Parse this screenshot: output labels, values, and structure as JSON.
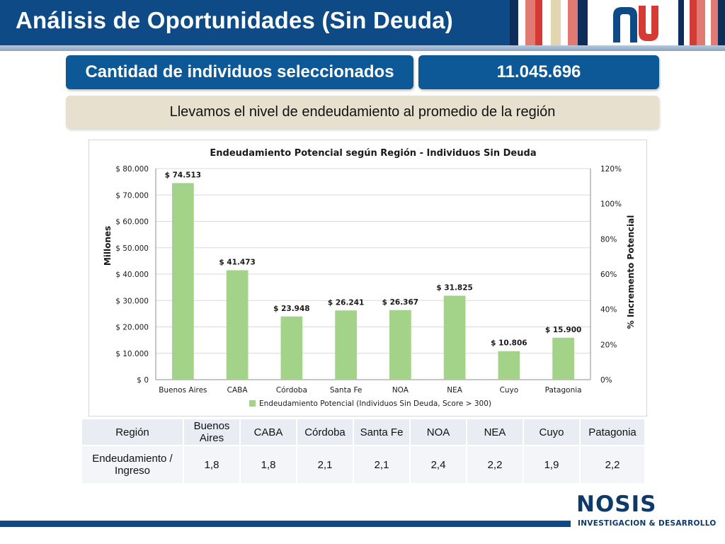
{
  "header": {
    "title": "Análisis de Oportunidades (Sin Deuda)",
    "colors": {
      "primary": "#0d4a86",
      "accent_red": "#d32f2f",
      "beige": "#e8e0cf"
    }
  },
  "banner": {
    "label": "Cantidad de individuos seleccionados",
    "value": "11.045.696"
  },
  "subtitle": "Llevamos el nivel de endeudamiento al promedio de la región",
  "chart_data": {
    "type": "bar",
    "title": "Endeudamiento Potencial según Región - Individuos Sin Deuda",
    "ylabel": "Millones",
    "y2label": "% Incremento Potencial",
    "categories": [
      "Buenos Aires",
      "CABA",
      "Córdoba",
      "Santa Fe",
      "NOA",
      "NEA",
      "Cuyo",
      "Patagonia"
    ],
    "series": [
      {
        "name": "Endeudamiento Potencial (Individuos Sin Deuda, Score > 300)",
        "values": [
          74513,
          41473,
          23948,
          26241,
          26367,
          31825,
          10806,
          15900
        ],
        "labels": [
          "$ 74.513",
          "$ 41.473",
          "$ 23.948",
          "$ 26.241",
          "$ 26.367",
          "$ 31.825",
          "$ 10.806",
          "$ 15.900"
        ],
        "color": "#a3d289"
      }
    ],
    "ylim": [
      0,
      80000
    ],
    "yticks": [
      0,
      10000,
      20000,
      30000,
      40000,
      50000,
      60000,
      70000,
      80000
    ],
    "ytick_labels": [
      "$ 0",
      "$ 10.000",
      "$ 20.000",
      "$ 30.000",
      "$ 40.000",
      "$ 50.000",
      "$ 60.000",
      "$ 70.000",
      "$ 80.000"
    ],
    "y2lim": [
      0,
      120
    ],
    "y2ticks": [
      0,
      20,
      40,
      60,
      80,
      100,
      120
    ],
    "y2tick_labels": [
      "0%",
      "20%",
      "40%",
      "60%",
      "80%",
      "100%",
      "120%"
    ],
    "grid": true,
    "legend": "bottom"
  },
  "table": {
    "row1": {
      "header": "Región",
      "cells": [
        "Buenos Aires",
        "CABA",
        "Córdoba",
        "Santa Fe",
        "NOA",
        "NEA",
        "Cuyo",
        "Patagonia"
      ]
    },
    "row2": {
      "header": "Endeudamiento / Ingreso",
      "cells": [
        "1,8",
        "1,8",
        "2,1",
        "2,1",
        "2,4",
        "2,2",
        "1,9",
        "2,2"
      ]
    }
  },
  "footer": {
    "brand": "NOSIS",
    "tagline": "INVESTIGACION & DESARROLLO"
  }
}
